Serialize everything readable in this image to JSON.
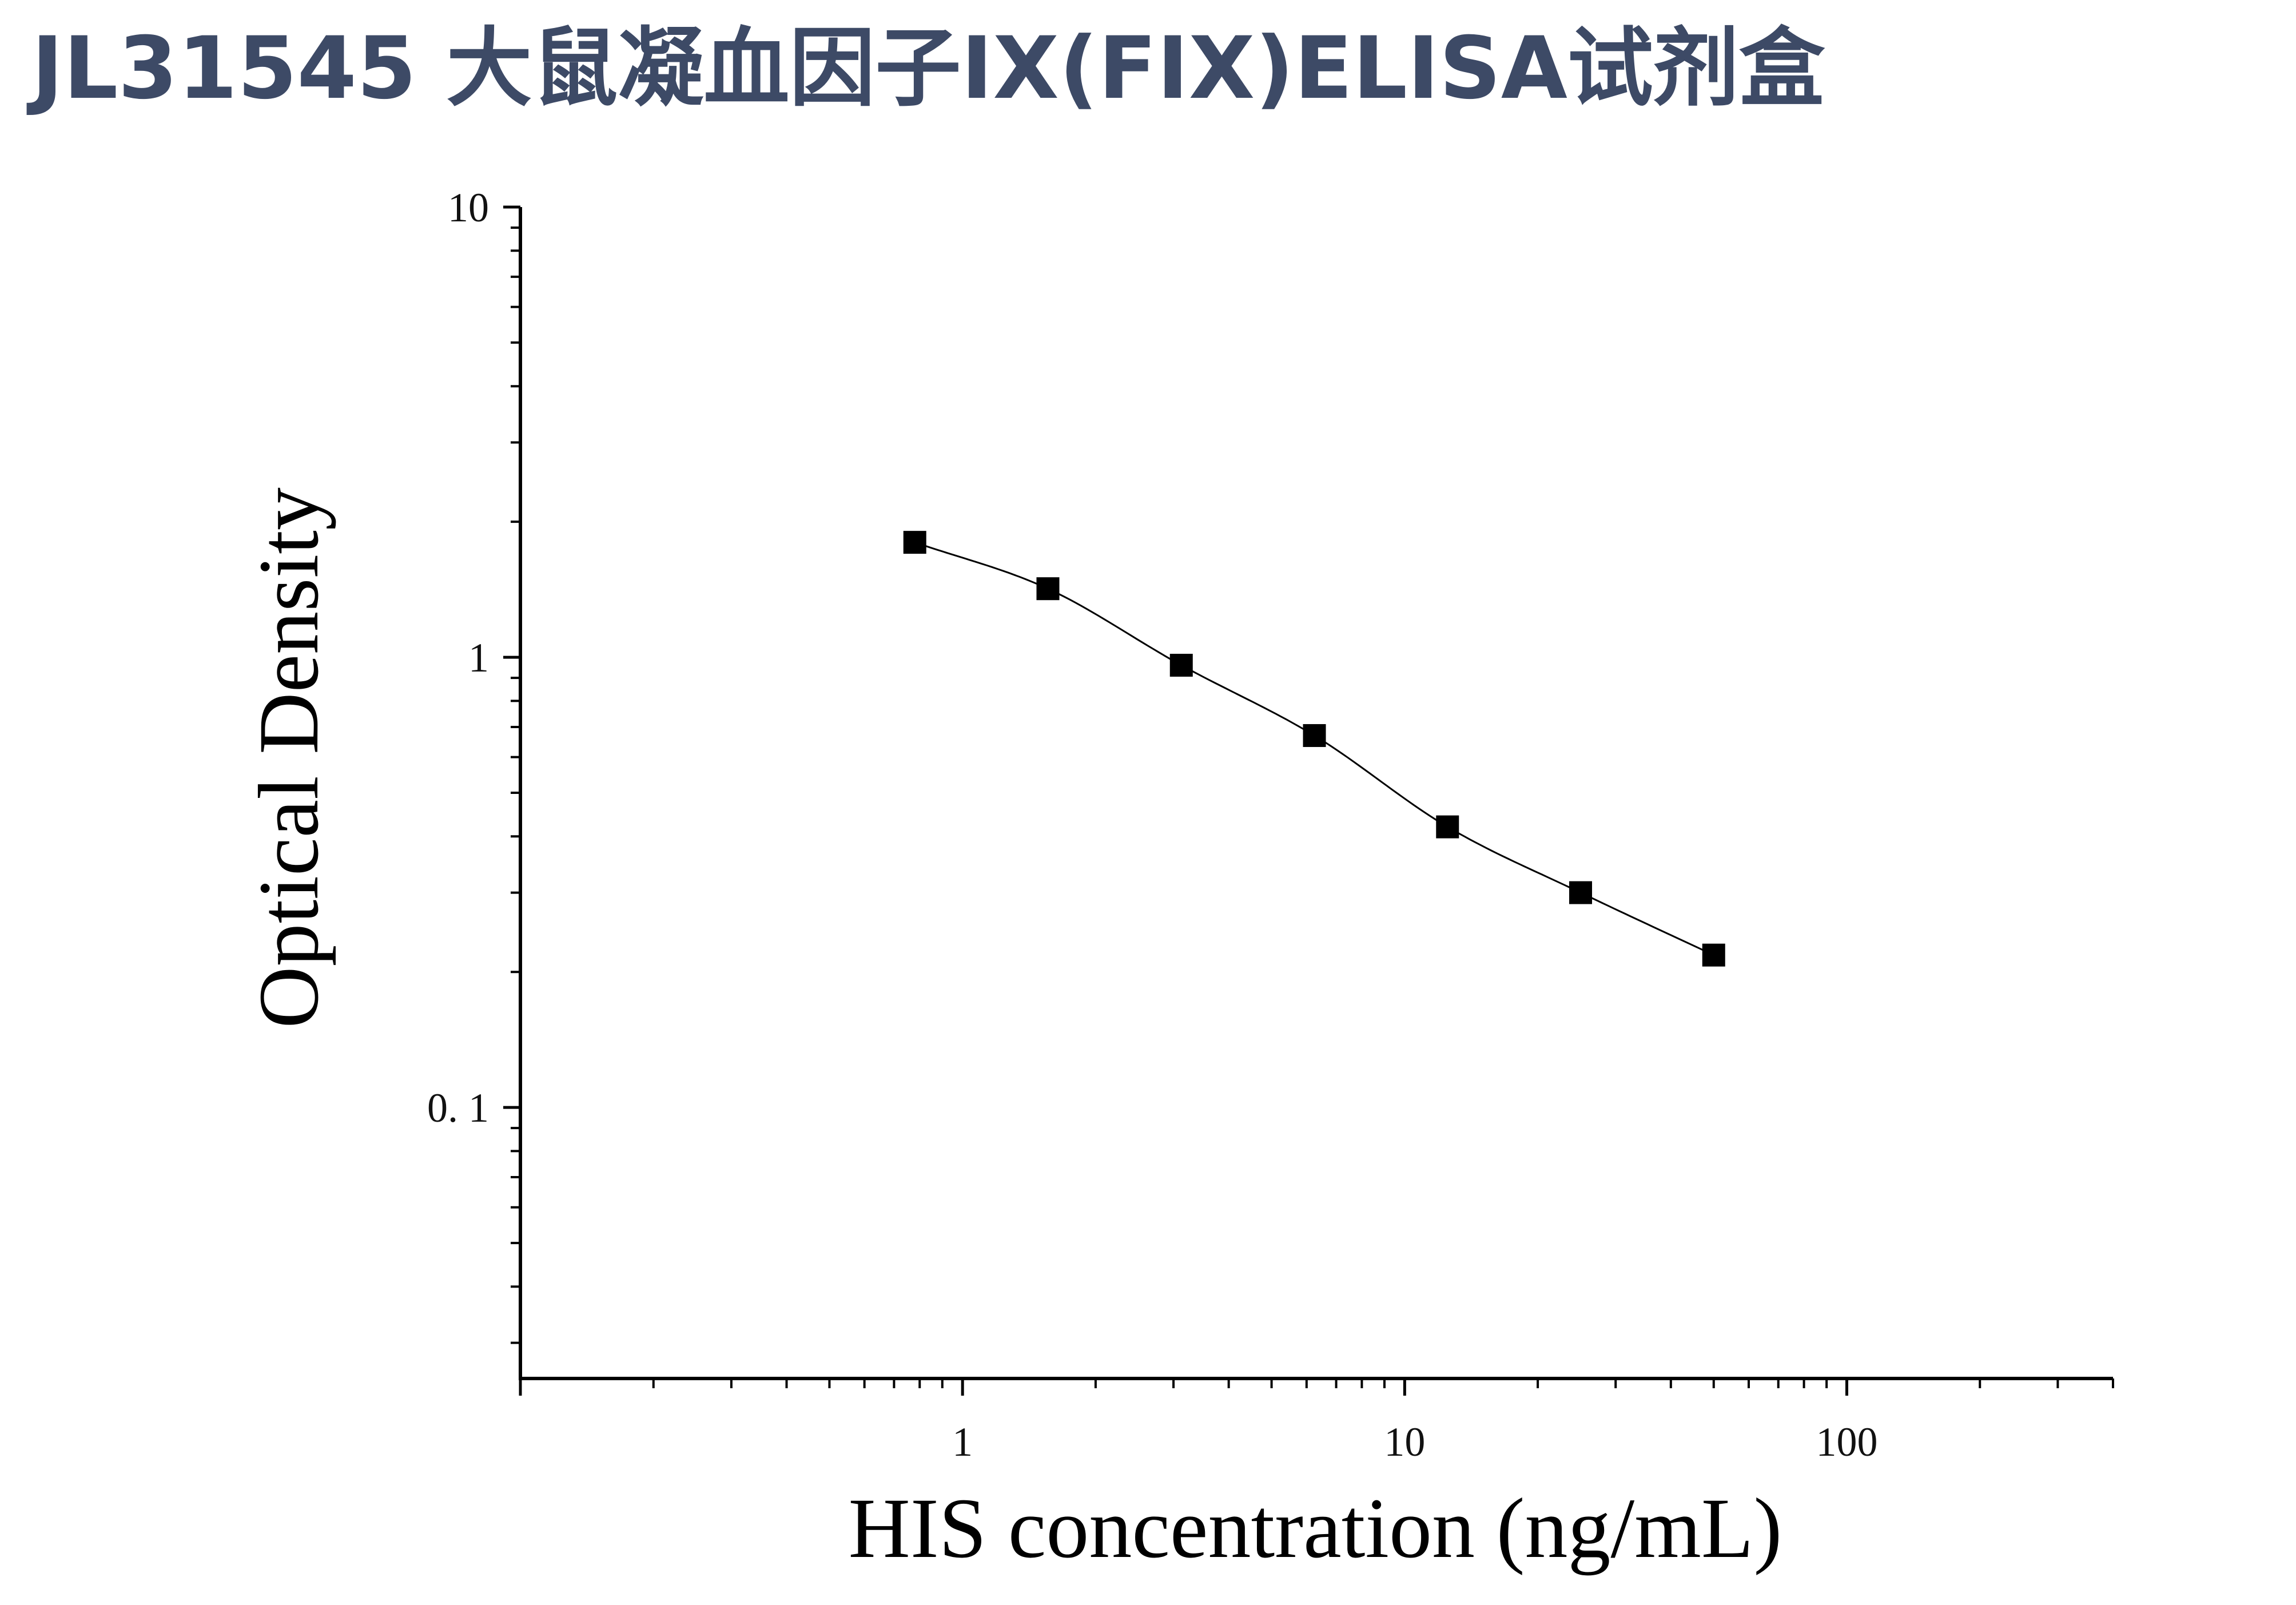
{
  "page": {
    "title": "JL31545 大鼠凝血因子IX(FIX)ELISA试剂盒",
    "title_color": "#3d4a66"
  },
  "chart_data": {
    "type": "scatter",
    "title": "JL31545 大鼠凝血因子IX(FIX)ELISA试剂盒",
    "xlabel": "HIS concentration (ng/mL)",
    "ylabel": "Optical Density",
    "x_scale": "log",
    "y_scale": "log",
    "xlim": [
      0.1,
      400
    ],
    "ylim": [
      0.025,
      10
    ],
    "x_ticks": [
      {
        "value": 1,
        "label": "1"
      },
      {
        "value": 10,
        "label": "10"
      },
      {
        "value": 100,
        "label": "100"
      }
    ],
    "y_ticks": [
      {
        "value": 0.1,
        "label": "0. 1"
      },
      {
        "value": 1,
        "label": "1"
      },
      {
        "value": 10,
        "label": "10"
      }
    ],
    "grid": false,
    "legend": "none",
    "series": [
      {
        "marker": "square",
        "color": "#000000",
        "fit_curve": "four-parameter logistic",
        "x": [
          0.78,
          1.56,
          3.125,
          6.25,
          12.5,
          25,
          50
        ],
        "y": [
          1.8,
          1.42,
          0.96,
          0.67,
          0.42,
          0.3,
          0.218
        ]
      }
    ]
  }
}
